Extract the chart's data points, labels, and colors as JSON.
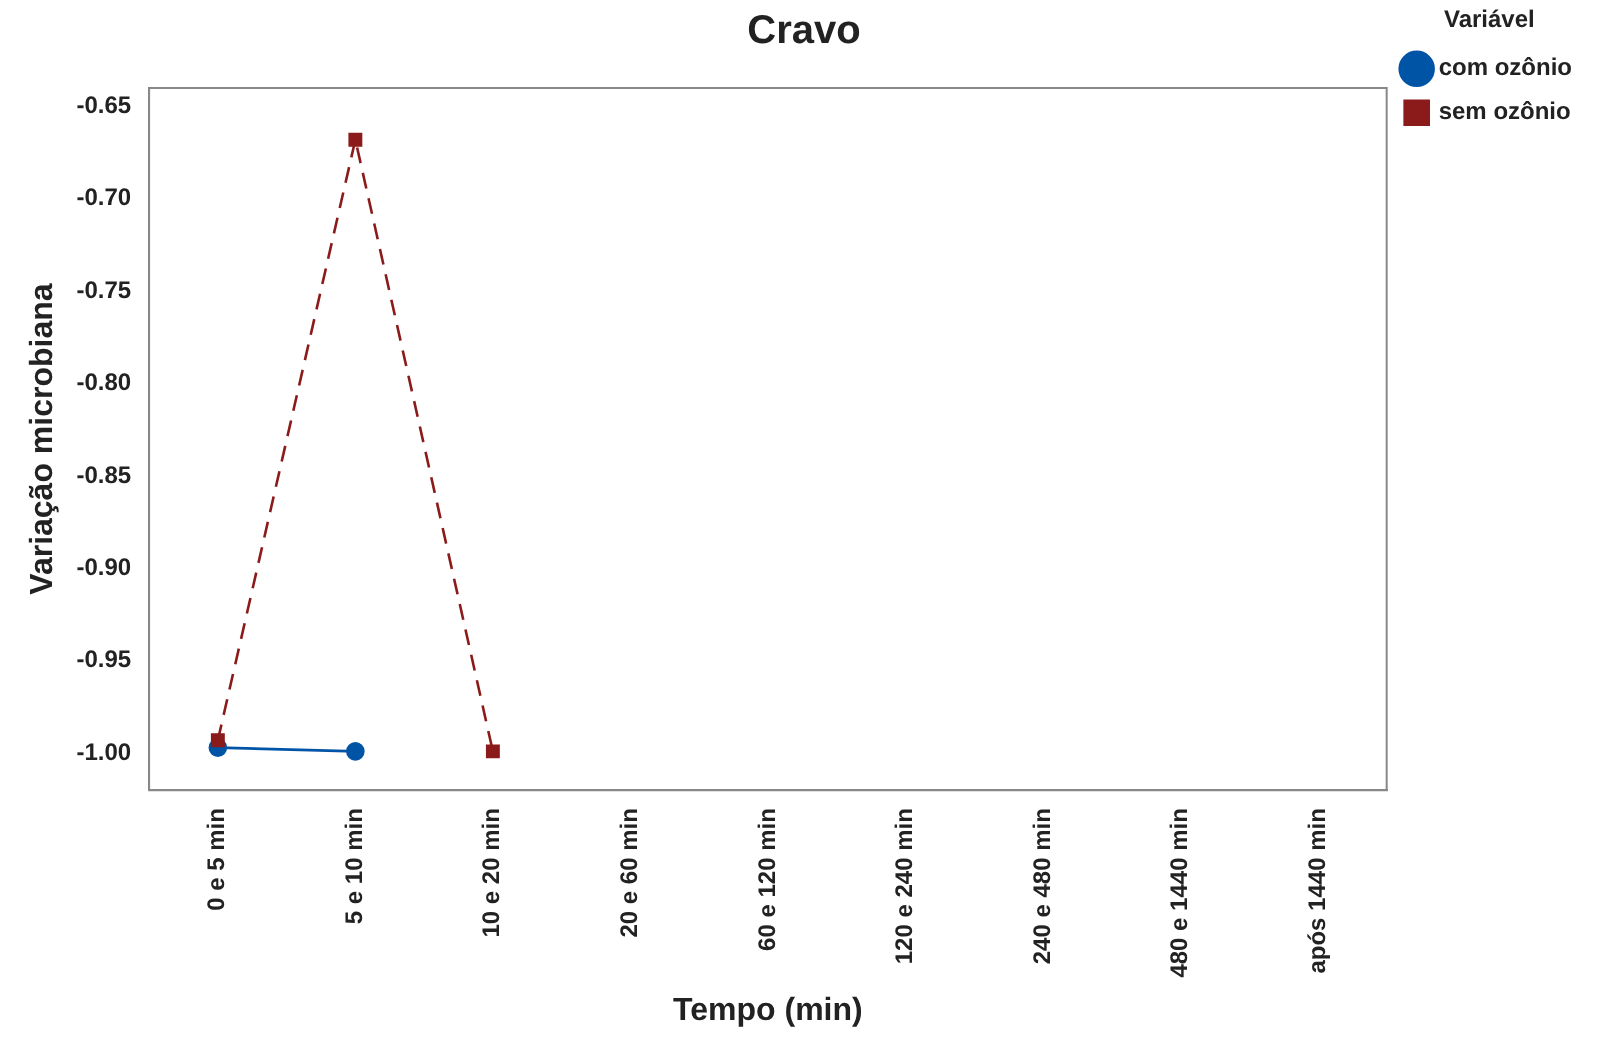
{
  "chart_data": {
    "type": "line",
    "title": "Cravo",
    "xlabel": "Tempo (min)",
    "ylabel": "Variação microbiana",
    "legend_title": "Variável",
    "categories": [
      "0 e 5 min",
      "5 e 10 min",
      "10 e 20 min",
      "20 e 60 min",
      "60 e 120 min",
      "120 e 240 min",
      "240 e 480 min",
      "480 e 1440 min",
      "após 1440 min"
    ],
    "series": [
      {
        "name": "com ozônio",
        "color": "#0054a6",
        "marker": "circle",
        "line_style": "solid",
        "values": [
          -0.997,
          -0.999,
          null,
          null,
          null,
          null,
          null,
          null,
          null
        ]
      },
      {
        "name": "sem ozônio",
        "color": "#8b1a1a",
        "marker": "square",
        "line_style": "dashed",
        "values": [
          -0.993,
          -0.668,
          -0.999,
          null,
          null,
          null,
          null,
          null,
          null
        ]
      }
    ],
    "ylim": [
      -1.02,
      -0.64
    ],
    "yticks": [
      -0.65,
      {
        "value": -0.7,
        "label": "-0.70"
      },
      -0.75,
      {
        "value": -0.8,
        "label": "-0.80"
      },
      -0.85,
      {
        "value": -0.9,
        "label": "-0.90"
      },
      -0.95,
      {
        "value": -1,
        "label": "-1.00"
      }
    ],
    "grid": false,
    "legend": "top right"
  }
}
